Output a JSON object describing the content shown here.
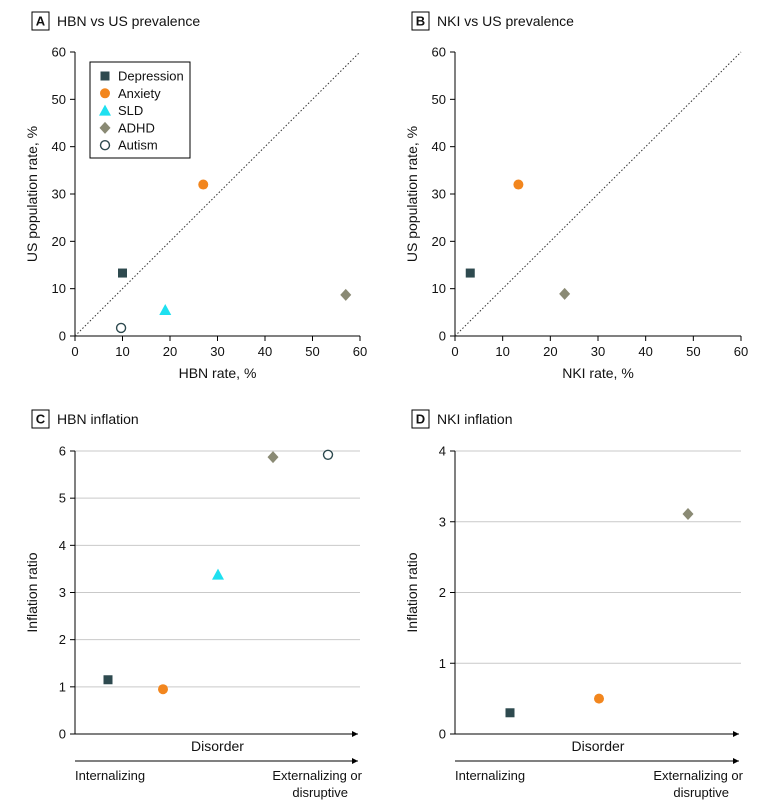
{
  "colors": {
    "Depression": "#2e4a4f",
    "Anxiety": "#f2861e",
    "SLD": "#1ee0f0",
    "ADHD": "#8a8a74",
    "Autism": "#2e4a4f"
  },
  "legend": {
    "entries": [
      {
        "label": "Depression",
        "marker": "square"
      },
      {
        "label": "Anxiety",
        "marker": "circle"
      },
      {
        "label": "SLD",
        "marker": "triangle"
      },
      {
        "label": "ADHD",
        "marker": "diamond"
      },
      {
        "label": "Autism",
        "marker": "open-circle"
      }
    ]
  },
  "chart_data": [
    {
      "panel": "A",
      "type": "scatter",
      "title": "HBN vs US prevalence",
      "xlabel": "HBN rate, %",
      "ylabel": "US population rate, %",
      "xlim": [
        0,
        60
      ],
      "ylim": [
        0,
        60
      ],
      "xticks": [
        0,
        10,
        20,
        30,
        40,
        50,
        60
      ],
      "yticks": [
        0,
        10,
        20,
        30,
        40,
        50,
        60
      ],
      "grid": false,
      "diagonal": true,
      "legend": "top-left",
      "points": [
        {
          "series": "Depression",
          "x": 10,
          "y": 13.3
        },
        {
          "series": "Anxiety",
          "x": 27,
          "y": 32
        },
        {
          "series": "SLD",
          "x": 19,
          "y": 5.5
        },
        {
          "series": "ADHD",
          "x": 57,
          "y": 8.7
        },
        {
          "series": "Autism",
          "x": 9.7,
          "y": 1.7
        }
      ]
    },
    {
      "panel": "B",
      "type": "scatter",
      "title": "NKI vs US prevalence",
      "xlabel": "NKI rate, %",
      "ylabel": "US population rate, %",
      "xlim": [
        0,
        60
      ],
      "ylim": [
        0,
        60
      ],
      "xticks": [
        0,
        10,
        20,
        30,
        40,
        50,
        60
      ],
      "yticks": [
        0,
        10,
        20,
        30,
        40,
        50,
        60
      ],
      "grid": false,
      "diagonal": true,
      "points": [
        {
          "series": "Depression",
          "x": 3.2,
          "y": 13.3
        },
        {
          "series": "Anxiety",
          "x": 13.3,
          "y": 32
        },
        {
          "series": "ADHD",
          "x": 23,
          "y": 8.9
        }
      ]
    },
    {
      "panel": "C",
      "type": "scatter",
      "title": "HBN inflation",
      "xlabel": "Disorder",
      "ylabel": "Inflation ratio",
      "ylim": [
        0,
        6
      ],
      "yticks": [
        0,
        1,
        2,
        3,
        4,
        5,
        6
      ],
      "grid": true,
      "categories": [
        "Depression",
        "Anxiety",
        "SLD",
        "ADHD",
        "Autism"
      ],
      "points": [
        {
          "series": "Depression",
          "index": 0,
          "y": 1.15
        },
        {
          "series": "Anxiety",
          "index": 1,
          "y": 0.95
        },
        {
          "series": "SLD",
          "index": 2,
          "y": 3.38
        },
        {
          "series": "ADHD",
          "index": 3,
          "y": 5.87
        },
        {
          "series": "Autism",
          "index": 4,
          "y": 5.92
        }
      ],
      "spectrum_left": "Internalizing",
      "spectrum_right_line1": "Externalizing or",
      "spectrum_right_line2": "disruptive"
    },
    {
      "panel": "D",
      "type": "scatter",
      "title": "NKI inflation",
      "xlabel": "Disorder",
      "ylabel": "Inflation ratio",
      "ylim": [
        0,
        4
      ],
      "yticks": [
        0,
        1,
        2,
        3,
        4
      ],
      "grid": true,
      "categories": [
        "Depression",
        "Anxiety",
        "ADHD"
      ],
      "points": [
        {
          "series": "Depression",
          "index": 0,
          "y": 0.3
        },
        {
          "series": "Anxiety",
          "index": 1,
          "y": 0.5
        },
        {
          "series": "ADHD",
          "index": 2,
          "y": 3.11
        }
      ],
      "spectrum_left": "Internalizing",
      "spectrum_right_line1": "Externalizing or",
      "spectrum_right_line2": "disruptive"
    }
  ]
}
